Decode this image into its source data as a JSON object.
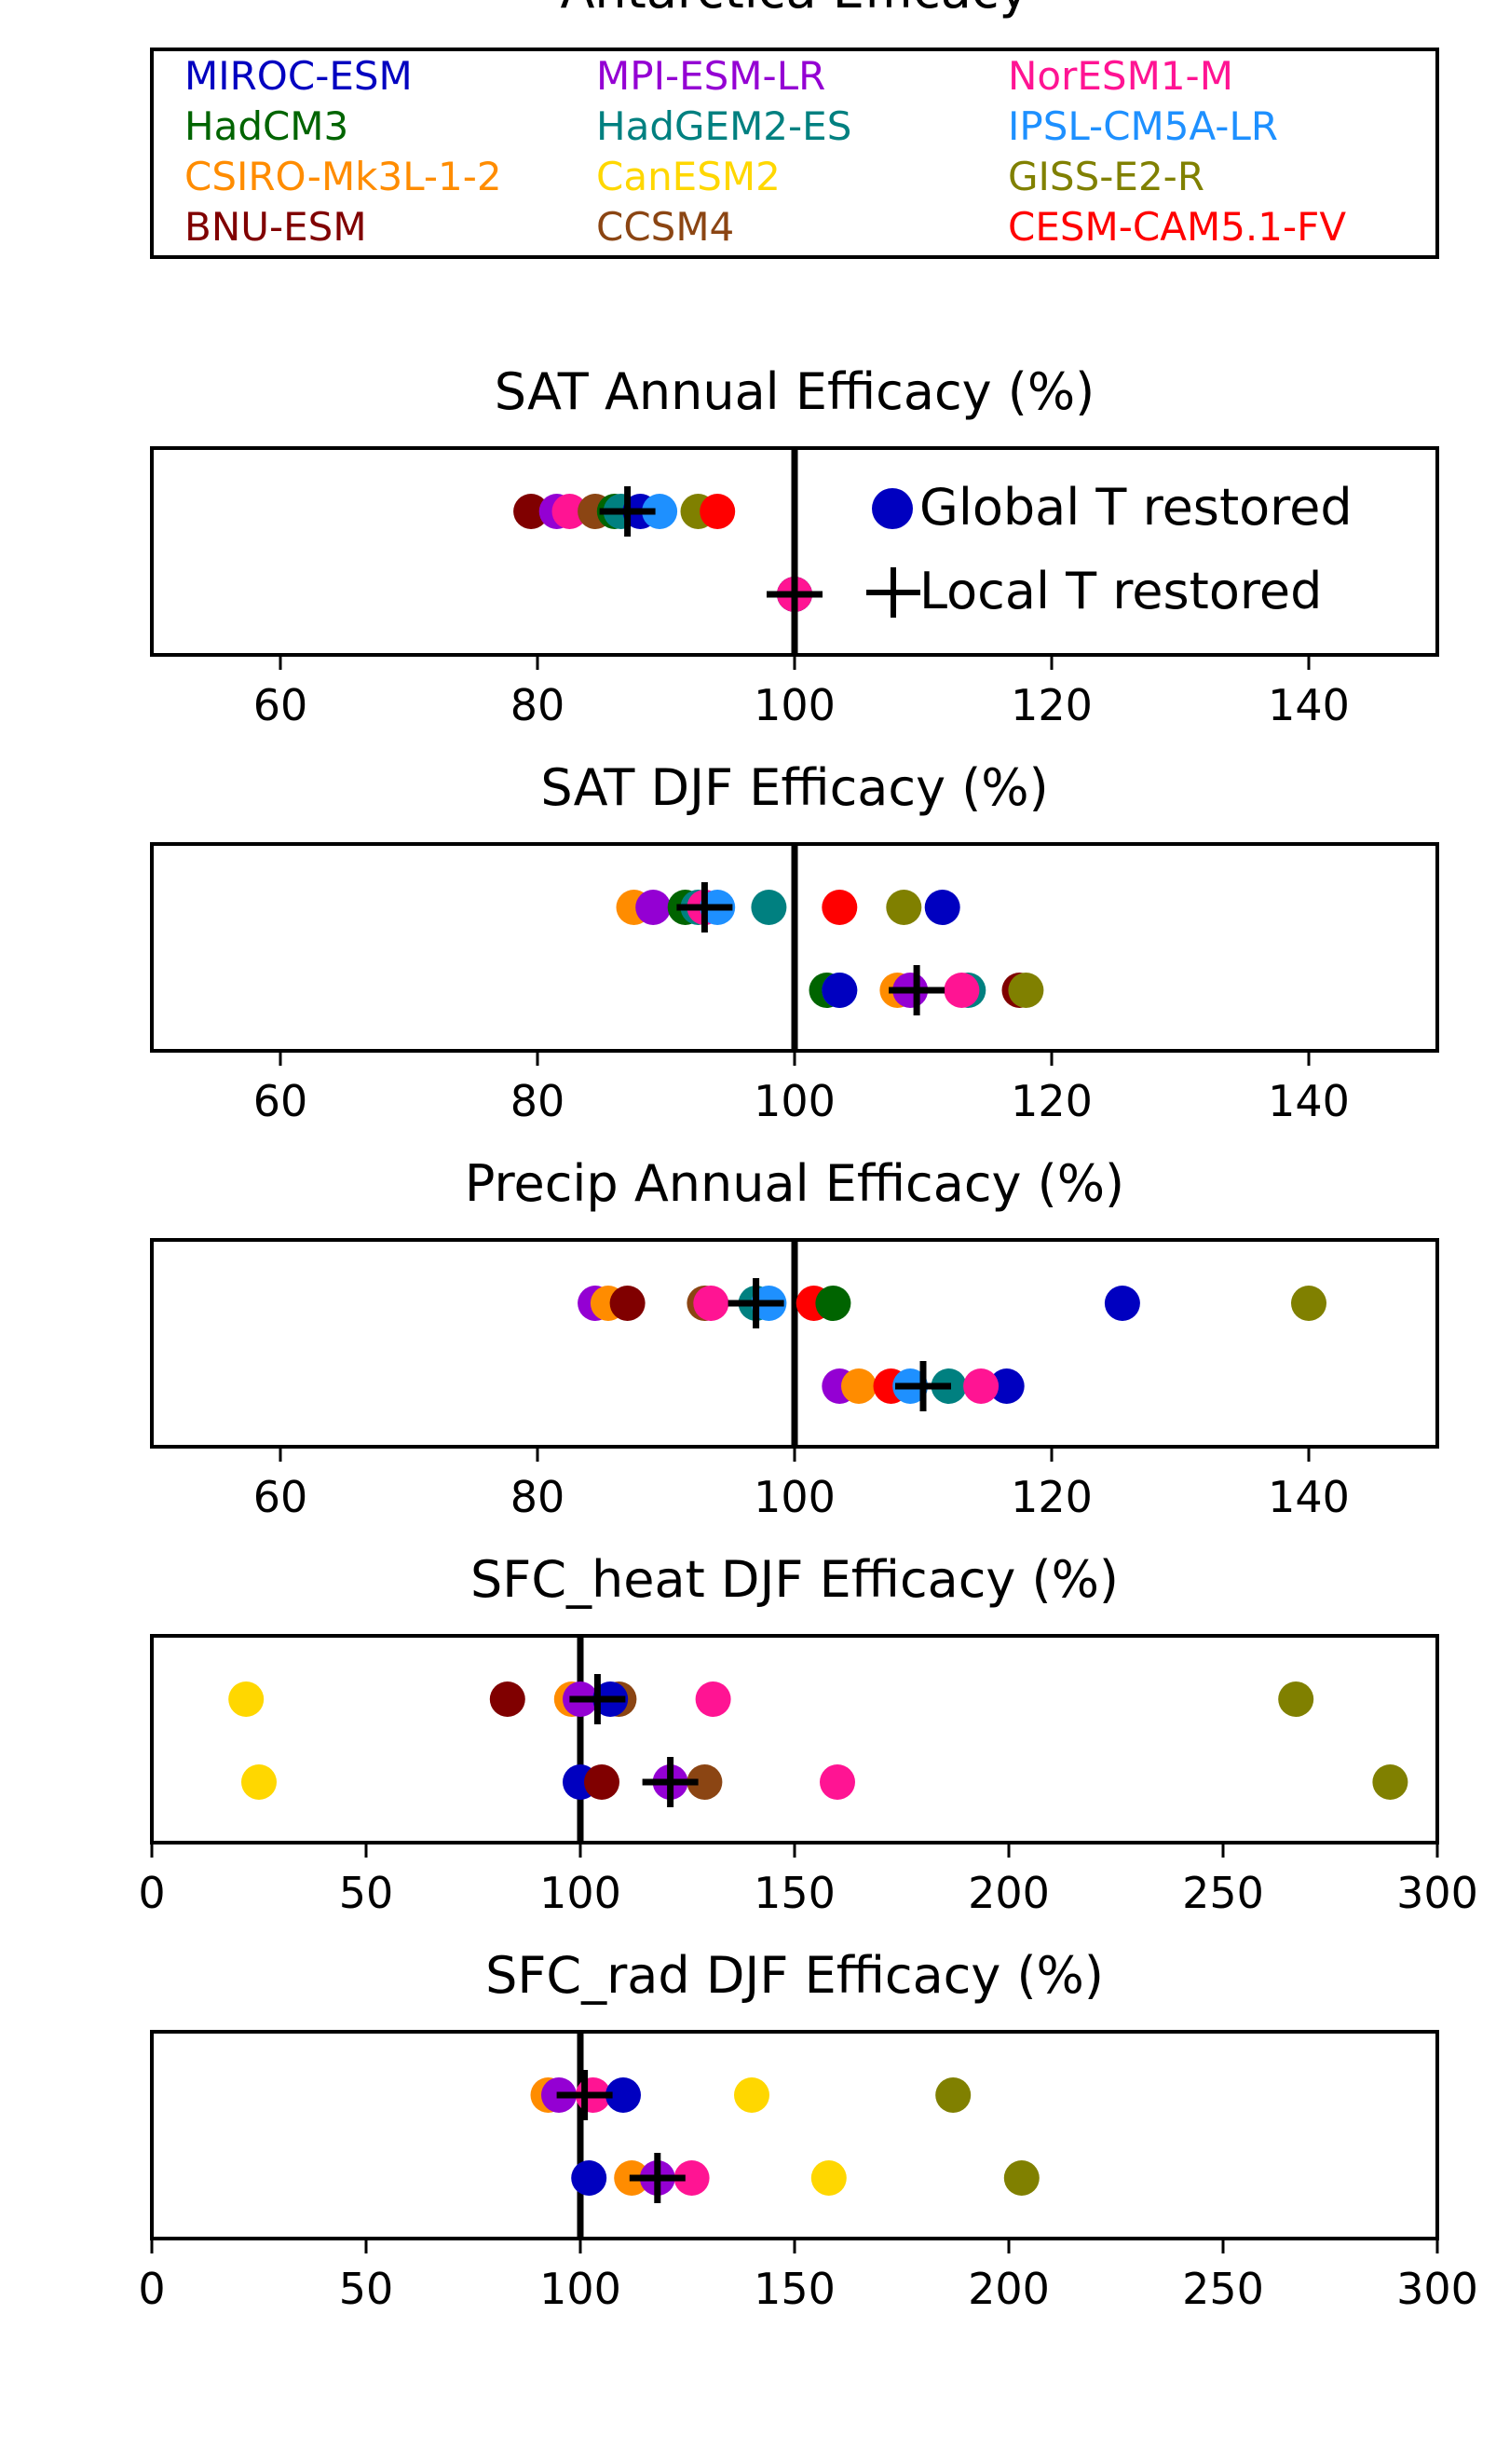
{
  "figure_title": "Antarctica Efficacy",
  "models": [
    {
      "name": "MIROC-ESM",
      "color": "#0000c0"
    },
    {
      "name": "HadCM3",
      "color": "#006400"
    },
    {
      "name": "CSIRO-Mk3L-1-2",
      "color": "#ff8c00"
    },
    {
      "name": "BNU-ESM",
      "color": "#800000"
    },
    {
      "name": "MPI-ESM-LR",
      "color": "#9400d3"
    },
    {
      "name": "HadGEM2-ES",
      "color": "#008080"
    },
    {
      "name": "CanESM2",
      "color": "#ffd700"
    },
    {
      "name": "CCSM4",
      "color": "#8b4513"
    },
    {
      "name": "NorESM1-M",
      "color": "#ff1493"
    },
    {
      "name": "IPSL-CM5A-LR",
      "color": "#1e90ff"
    },
    {
      "name": "GISS-E2-R",
      "color": "#808000"
    },
    {
      "name": "CESM-CAM5.1-FV",
      "color": "#ff0000"
    }
  ],
  "marker_legend": {
    "global": "Global T restored",
    "local": "Local T restored",
    "marker_color": "#0000c0"
  },
  "chart_data": [
    {
      "type": "scatter",
      "title": "SAT Annual Efficacy (%)",
      "xlim": [
        50,
        150
      ],
      "xticks": [
        60,
        80,
        100,
        120,
        140
      ],
      "reference_line": 100,
      "show_marker_legend": true,
      "series": [
        {
          "name": "Global T restored",
          "points": [
            {
              "model": "BNU-ESM",
              "x": 79.5
            },
            {
              "model": "MPI-ESM-LR",
              "x": 81.5
            },
            {
              "model": "NorESM1-M",
              "x": 82.5
            },
            {
              "model": "CCSM4",
              "x": 84.5
            },
            {
              "model": "HadCM3",
              "x": 86
            },
            {
              "model": "HadGEM2-ES",
              "x": 86.5
            },
            {
              "model": "MIROC-ESM",
              "x": 88
            },
            {
              "model": "IPSL-CM5A-LR",
              "x": 89.5
            },
            {
              "model": "GISS-E2-R",
              "x": 92.5
            },
            {
              "model": "CESM-CAM5.1-FV",
              "x": 94
            }
          ],
          "mean": 87
        },
        {
          "name": "Local T restored",
          "points": [
            {
              "model": "CSIRO-Mk3L-1-2",
              "x": 100
            },
            {
              "model": "HadCM3",
              "x": 100
            },
            {
              "model": "MIROC-ESM",
              "x": 100
            },
            {
              "model": "NorESM1-M",
              "x": 100
            }
          ],
          "mean": 100
        }
      ]
    },
    {
      "type": "scatter",
      "title": "SAT DJF Efficacy (%)",
      "xlim": [
        50,
        150
      ],
      "xticks": [
        60,
        80,
        100,
        120,
        140
      ],
      "reference_line": 100,
      "series": [
        {
          "name": "Global T restored",
          "points": [
            {
              "model": "CSIRO-Mk3L-1-2",
              "x": 87.5
            },
            {
              "model": "MPI-ESM-LR",
              "x": 89
            },
            {
              "model": "HadCM3",
              "x": 91.5
            },
            {
              "model": "HadGEM2-ES",
              "x": 92.5
            },
            {
              "model": "NorESM1-M",
              "x": 93
            },
            {
              "model": "IPSL-CM5A-LR",
              "x": 94
            },
            {
              "model": "HadGEM2-ES",
              "x": 98
            },
            {
              "model": "CESM-CAM5.1-FV",
              "x": 103.5
            },
            {
              "model": "GISS-E2-R",
              "x": 108.5
            },
            {
              "model": "MIROC-ESM",
              "x": 111.5
            }
          ],
          "mean": 93
        },
        {
          "name": "Local T restored",
          "points": [
            {
              "model": "HadCM3",
              "x": 102.5
            },
            {
              "model": "IPSL-CM5A-LR",
              "x": 103.5
            },
            {
              "model": "MIROC-ESM",
              "x": 103.5
            },
            {
              "model": "CSIRO-Mk3L-1-2",
              "x": 108
            },
            {
              "model": "MPI-ESM-LR",
              "x": 109
            },
            {
              "model": "HadGEM2-ES",
              "x": 113.5
            },
            {
              "model": "NorESM1-M",
              "x": 113
            },
            {
              "model": "BNU-ESM",
              "x": 117.5
            },
            {
              "model": "GISS-E2-R",
              "x": 118
            }
          ],
          "mean": 109.5
        }
      ]
    },
    {
      "type": "scatter",
      "title": "Precip Annual Efficacy (%)",
      "xlim": [
        50,
        150
      ],
      "xticks": [
        60,
        80,
        100,
        120,
        140
      ],
      "reference_line": 100,
      "series": [
        {
          "name": "Global T restored",
          "points": [
            {
              "model": "MPI-ESM-LR",
              "x": 84.5
            },
            {
              "model": "CSIRO-Mk3L-1-2",
              "x": 85.5
            },
            {
              "model": "BNU-ESM",
              "x": 87
            },
            {
              "model": "CCSM4",
              "x": 93
            },
            {
              "model": "NorESM1-M",
              "x": 93.5
            },
            {
              "model": "HadGEM2-ES",
              "x": 97
            },
            {
              "model": "IPSL-CM5A-LR",
              "x": 98
            },
            {
              "model": "CESM-CAM5.1-FV",
              "x": 101.5
            },
            {
              "model": "HadCM3",
              "x": 103
            },
            {
              "model": "MIROC-ESM",
              "x": 125.5
            },
            {
              "model": "GISS-E2-R",
              "x": 140
            }
          ],
          "mean": 97
        },
        {
          "name": "Local T restored",
          "points": [
            {
              "model": "MPI-ESM-LR",
              "x": 103.5
            },
            {
              "model": "CSIRO-Mk3L-1-2",
              "x": 105
            },
            {
              "model": "CESM-CAM5.1-FV",
              "x": 107.5
            },
            {
              "model": "IPSL-CM5A-LR",
              "x": 109
            },
            {
              "model": "HadGEM2-ES",
              "x": 112
            },
            {
              "model": "MIROC-ESM",
              "x": 116.5
            },
            {
              "model": "NorESM1-M",
              "x": 114.5
            }
          ],
          "mean": 110
        }
      ]
    },
    {
      "type": "scatter",
      "title": "SFC_heat DJF Efficacy (%)",
      "xlim": [
        0,
        300
      ],
      "xticks": [
        0,
        50,
        100,
        150,
        200,
        250,
        300
      ],
      "reference_line": 100,
      "series": [
        {
          "name": "Global T restored",
          "points": [
            {
              "model": "CanESM2",
              "x": 22
            },
            {
              "model": "BNU-ESM",
              "x": 83
            },
            {
              "model": "CSIRO-Mk3L-1-2",
              "x": 98
            },
            {
              "model": "MPI-ESM-LR",
              "x": 100
            },
            {
              "model": "CCSM4",
              "x": 109
            },
            {
              "model": "MIROC-ESM",
              "x": 107
            },
            {
              "model": "NorESM1-M",
              "x": 131
            },
            {
              "model": "GISS-E2-R",
              "x": 267
            }
          ],
          "mean": 104
        },
        {
          "name": "Local T restored",
          "points": [
            {
              "model": "CanESM2",
              "x": 25
            },
            {
              "model": "MIROC-ESM",
              "x": 100
            },
            {
              "model": "BNU-ESM",
              "x": 105
            },
            {
              "model": "MPI-ESM-LR",
              "x": 121
            },
            {
              "model": "CCSM4",
              "x": 129
            },
            {
              "model": "NorESM1-M",
              "x": 160
            },
            {
              "model": "GISS-E2-R",
              "x": 289
            }
          ],
          "mean": 121
        }
      ]
    },
    {
      "type": "scatter",
      "title": "SFC_rad DJF Efficacy (%)",
      "xlim": [
        0,
        300
      ],
      "xticks": [
        0,
        50,
        100,
        150,
        200,
        250,
        300
      ],
      "reference_line": 100,
      "series": [
        {
          "name": "Global T restored",
          "points": [
            {
              "model": "CSIRO-Mk3L-1-2",
              "x": 92.5
            },
            {
              "model": "MPI-ESM-LR",
              "x": 95
            },
            {
              "model": "NorESM1-M",
              "x": 103
            },
            {
              "model": "MIROC-ESM",
              "x": 110
            },
            {
              "model": "CanESM2",
              "x": 140
            },
            {
              "model": "GISS-E2-R",
              "x": 187
            }
          ],
          "mean": 101
        },
        {
          "name": "Local T restored",
          "points": [
            {
              "model": "MIROC-ESM",
              "x": 102
            },
            {
              "model": "CSIRO-Mk3L-1-2",
              "x": 112
            },
            {
              "model": "MPI-ESM-LR",
              "x": 118
            },
            {
              "model": "NorESM1-M",
              "x": 126
            },
            {
              "model": "CanESM2",
              "x": 158
            },
            {
              "model": "GISS-E2-R",
              "x": 203
            }
          ],
          "mean": 118
        }
      ]
    }
  ]
}
